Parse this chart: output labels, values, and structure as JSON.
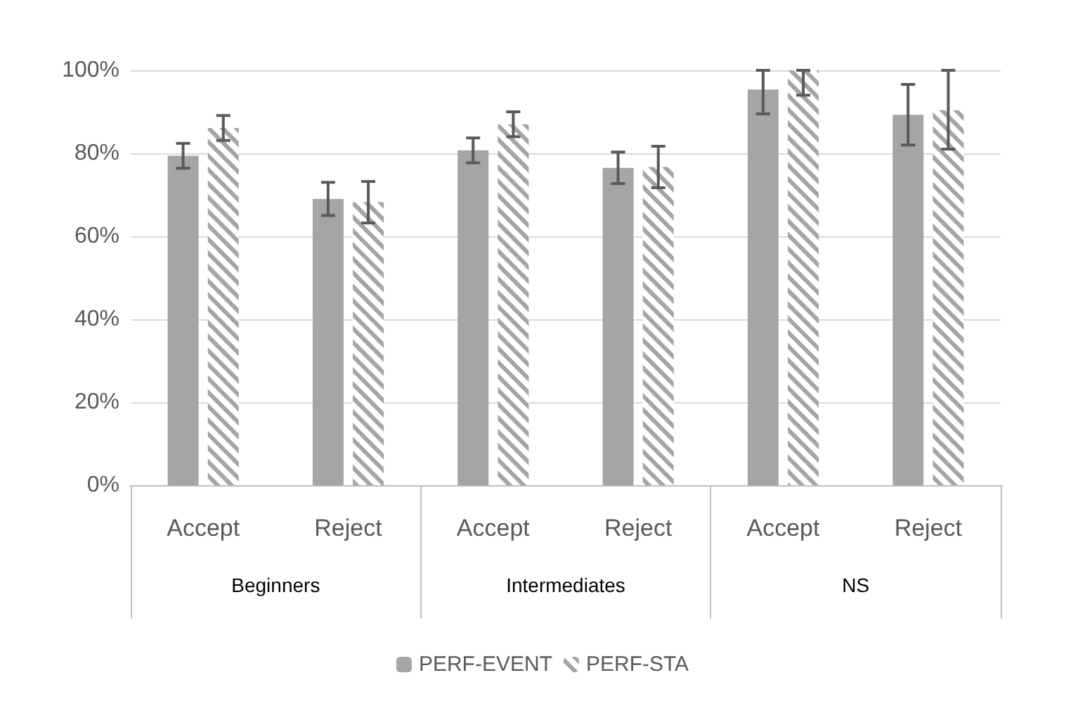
{
  "chart_data": {
    "type": "bar",
    "categories": [
      "Accept",
      "Reject",
      "Accept",
      "Reject",
      "Accept",
      "Reject"
    ],
    "annotations": [
      "Beginners",
      "Intermediates",
      "NS"
    ],
    "series": [
      {
        "name": "PERF-EVENT",
        "color": "#a5a5a5",
        "values": [
          79.4,
          69,
          80.7,
          76.5,
          95.4,
          89.3
        ],
        "errors": [
          3,
          4,
          3,
          3.8,
          [
            89.5,
            100
          ],
          7.3
        ]
      },
      {
        "name": "PERF-STA",
        "color": "#a5a5a5",
        "values": [
          86.1,
          68.2,
          87,
          76.7,
          100,
          90.4
        ],
        "errors": [
          3,
          5,
          3,
          5,
          [
            94,
            100
          ],
          [
            81,
            100
          ]
        ]
      }
    ],
    "ylim": [
      0,
      100
    ],
    "yticks": [
      {
        "value": 0,
        "label": "0%"
      },
      {
        "value": 20,
        "label": "20%"
      },
      {
        "value": 40,
        "label": "40%"
      },
      {
        "value": 60,
        "label": "60%"
      },
      {
        "value": 80,
        "label": "80%"
      },
      {
        "value": 100,
        "label": "100%"
      }
    ],
    "grid": "y",
    "legend": "bottom"
  }
}
